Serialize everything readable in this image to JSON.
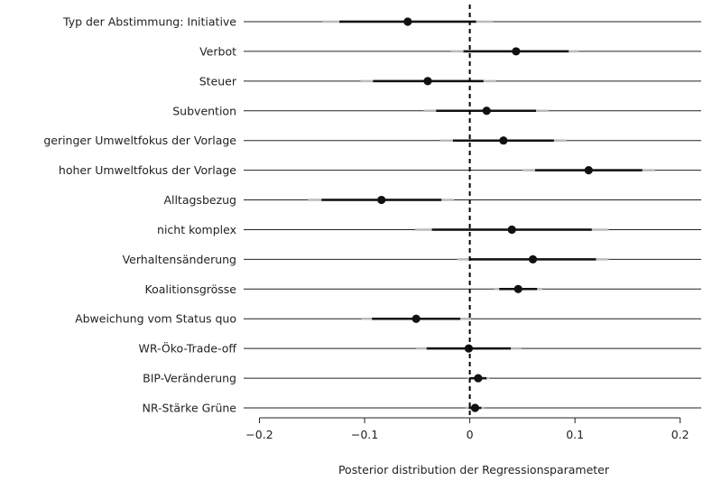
{
  "chart_data": {
    "type": "forest",
    "xlabel": "Posterior distribution der Regressionsparameter",
    "xlim": [
      -0.215,
      0.22
    ],
    "xticks": [
      -0.2,
      -0.1,
      0,
      0.1,
      0.2
    ],
    "xtick_labels": [
      "−0.2",
      "−0.1",
      "0",
      "0.1",
      "0.2"
    ],
    "reference_line": 0,
    "colors": {
      "point": "#111111",
      "inner": "#111111",
      "outer": "#bbbbbb",
      "row_line": "#222222"
    },
    "rows": [
      {
        "label": "Typ der Abstimmung: Initiative",
        "mean": -0.059,
        "inner": [
          -0.124,
          0.006
        ],
        "outer": [
          -0.14,
          0.022
        ]
      },
      {
        "label": "Verbot",
        "mean": 0.044,
        "inner": [
          -0.006,
          0.094
        ],
        "outer": [
          -0.018,
          0.104
        ]
      },
      {
        "label": "Steuer",
        "mean": -0.04,
        "inner": [
          -0.092,
          0.013
        ],
        "outer": [
          -0.104,
          0.025
        ]
      },
      {
        "label": "Subvention",
        "mean": 0.016,
        "inner": [
          -0.032,
          0.063
        ],
        "outer": [
          -0.044,
          0.075
        ]
      },
      {
        "label": "geringer Umweltfokus der Vorlage",
        "mean": 0.032,
        "inner": [
          -0.016,
          0.08
        ],
        "outer": [
          -0.028,
          0.092
        ]
      },
      {
        "label": "hoher Umweltfokus der Vorlage",
        "mean": 0.113,
        "inner": [
          0.062,
          0.164
        ],
        "outer": [
          0.05,
          0.176
        ]
      },
      {
        "label": "Alltagsbezug",
        "mean": -0.084,
        "inner": [
          -0.141,
          -0.027
        ],
        "outer": [
          -0.154,
          -0.015
        ]
      },
      {
        "label": "nicht komplex",
        "mean": 0.04,
        "inner": [
          -0.036,
          0.116
        ],
        "outer": [
          -0.052,
          0.132
        ]
      },
      {
        "label": "Verhaltensänderung",
        "mean": 0.06,
        "inner": [
          0,
          0.12
        ],
        "outer": [
          -0.012,
          0.132
        ]
      },
      {
        "label": "Koalitionsgrösse",
        "mean": 0.046,
        "inner": [
          0.028,
          0.064
        ],
        "outer": [
          0.023,
          0.069
        ]
      },
      {
        "label": "Abweichung vom Status quo",
        "mean": -0.051,
        "inner": [
          -0.093,
          -0.009
        ],
        "outer": [
          -0.103,
          0.001
        ]
      },
      {
        "label": "WR-Öko-Trade-off",
        "mean": -0.001,
        "inner": [
          -0.041,
          0.039
        ],
        "outer": [
          -0.051,
          0.049
        ]
      },
      {
        "label": "BIP-Veränderung",
        "mean": 0.008,
        "inner": [
          0,
          0.016
        ],
        "outer": [
          -0.003,
          0.019
        ]
      },
      {
        "label": "NR-Stärke Grüne",
        "mean": 0.005,
        "inner": [
          -0.001,
          0.011
        ],
        "outer": [
          -0.004,
          0.014
        ]
      }
    ]
  }
}
